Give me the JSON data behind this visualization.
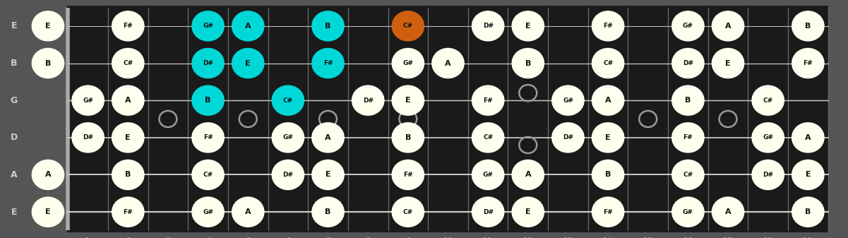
{
  "bg_color": "#555555",
  "board_color": "#1a1a1a",
  "strings": [
    "E",
    "B",
    "G",
    "D",
    "A",
    "E"
  ],
  "num_frets": 19,
  "fret_markers_single": [
    3,
    5,
    7,
    9,
    15,
    17
  ],
  "fret_markers_double": [
    12
  ],
  "note_color_default": "#fffff0",
  "note_color_cyan": "#00d8d8",
  "note_color_orange": "#d06010",
  "note_text_color": "#111111",
  "marker_color": "#999999",
  "string_label_color": "#cccccc",
  "fret_label_color": "#aaaaaa",
  "fret_line_color": "#666666",
  "string_line_color": "#cccccc",
  "nut_color": "#aaaaaa",
  "notes": [
    {
      "string": 0,
      "fret": 0,
      "note": "E",
      "color": "default"
    },
    {
      "string": 0,
      "fret": 2,
      "note": "F#",
      "color": "default"
    },
    {
      "string": 0,
      "fret": 4,
      "note": "G#",
      "color": "cyan"
    },
    {
      "string": 0,
      "fret": 5,
      "note": "A",
      "color": "cyan"
    },
    {
      "string": 0,
      "fret": 7,
      "note": "B",
      "color": "cyan"
    },
    {
      "string": 0,
      "fret": 9,
      "note": "C#",
      "color": "orange"
    },
    {
      "string": 0,
      "fret": 11,
      "note": "D#",
      "color": "default"
    },
    {
      "string": 0,
      "fret": 12,
      "note": "E",
      "color": "default"
    },
    {
      "string": 0,
      "fret": 14,
      "note": "F#",
      "color": "default"
    },
    {
      "string": 0,
      "fret": 16,
      "note": "G#",
      "color": "default"
    },
    {
      "string": 0,
      "fret": 17,
      "note": "A",
      "color": "default"
    },
    {
      "string": 0,
      "fret": 19,
      "note": "B",
      "color": "default"
    },
    {
      "string": 1,
      "fret": 0,
      "note": "B",
      "color": "default"
    },
    {
      "string": 1,
      "fret": 2,
      "note": "C#",
      "color": "default"
    },
    {
      "string": 1,
      "fret": 4,
      "note": "D#",
      "color": "cyan"
    },
    {
      "string": 1,
      "fret": 5,
      "note": "E",
      "color": "cyan"
    },
    {
      "string": 1,
      "fret": 7,
      "note": "F#",
      "color": "cyan"
    },
    {
      "string": 1,
      "fret": 9,
      "note": "G#",
      "color": "default"
    },
    {
      "string": 1,
      "fret": 10,
      "note": "A",
      "color": "default"
    },
    {
      "string": 1,
      "fret": 12,
      "note": "B",
      "color": "default"
    },
    {
      "string": 1,
      "fret": 14,
      "note": "C#",
      "color": "default"
    },
    {
      "string": 1,
      "fret": 16,
      "note": "D#",
      "color": "default"
    },
    {
      "string": 1,
      "fret": 17,
      "note": "E",
      "color": "default"
    },
    {
      "string": 1,
      "fret": 19,
      "note": "F#",
      "color": "default"
    },
    {
      "string": 2,
      "fret": 1,
      "note": "G#",
      "color": "default"
    },
    {
      "string": 2,
      "fret": 2,
      "note": "A",
      "color": "default"
    },
    {
      "string": 2,
      "fret": 4,
      "note": "B",
      "color": "cyan"
    },
    {
      "string": 2,
      "fret": 6,
      "note": "C#",
      "color": "cyan"
    },
    {
      "string": 2,
      "fret": 8,
      "note": "D#",
      "color": "default"
    },
    {
      "string": 2,
      "fret": 9,
      "note": "E",
      "color": "default"
    },
    {
      "string": 2,
      "fret": 11,
      "note": "F#",
      "color": "default"
    },
    {
      "string": 2,
      "fret": 13,
      "note": "G#",
      "color": "default"
    },
    {
      "string": 2,
      "fret": 14,
      "note": "A",
      "color": "default"
    },
    {
      "string": 2,
      "fret": 16,
      "note": "B",
      "color": "default"
    },
    {
      "string": 2,
      "fret": 18,
      "note": "C#",
      "color": "default"
    },
    {
      "string": 3,
      "fret": 1,
      "note": "D#",
      "color": "default"
    },
    {
      "string": 3,
      "fret": 2,
      "note": "E",
      "color": "default"
    },
    {
      "string": 3,
      "fret": 4,
      "note": "F#",
      "color": "default"
    },
    {
      "string": 3,
      "fret": 6,
      "note": "G#",
      "color": "default"
    },
    {
      "string": 3,
      "fret": 7,
      "note": "A",
      "color": "default"
    },
    {
      "string": 3,
      "fret": 9,
      "note": "B",
      "color": "default"
    },
    {
      "string": 3,
      "fret": 11,
      "note": "C#",
      "color": "default"
    },
    {
      "string": 3,
      "fret": 13,
      "note": "D#",
      "color": "default"
    },
    {
      "string": 3,
      "fret": 14,
      "note": "E",
      "color": "default"
    },
    {
      "string": 3,
      "fret": 16,
      "note": "F#",
      "color": "default"
    },
    {
      "string": 3,
      "fret": 18,
      "note": "G#",
      "color": "default"
    },
    {
      "string": 3,
      "fret": 19,
      "note": "A",
      "color": "default"
    },
    {
      "string": 4,
      "fret": 0,
      "note": "A",
      "color": "default"
    },
    {
      "string": 4,
      "fret": 2,
      "note": "B",
      "color": "default"
    },
    {
      "string": 4,
      "fret": 4,
      "note": "C#",
      "color": "default"
    },
    {
      "string": 4,
      "fret": 6,
      "note": "D#",
      "color": "default"
    },
    {
      "string": 4,
      "fret": 7,
      "note": "E",
      "color": "default"
    },
    {
      "string": 4,
      "fret": 9,
      "note": "F#",
      "color": "default"
    },
    {
      "string": 4,
      "fret": 11,
      "note": "G#",
      "color": "default"
    },
    {
      "string": 4,
      "fret": 12,
      "note": "A",
      "color": "default"
    },
    {
      "string": 4,
      "fret": 14,
      "note": "B",
      "color": "default"
    },
    {
      "string": 4,
      "fret": 16,
      "note": "C#",
      "color": "default"
    },
    {
      "string": 4,
      "fret": 18,
      "note": "D#",
      "color": "default"
    },
    {
      "string": 4,
      "fret": 19,
      "note": "E",
      "color": "default"
    },
    {
      "string": 5,
      "fret": 0,
      "note": "E",
      "color": "default"
    },
    {
      "string": 5,
      "fret": 2,
      "note": "F#",
      "color": "default"
    },
    {
      "string": 5,
      "fret": 4,
      "note": "G#",
      "color": "default"
    },
    {
      "string": 5,
      "fret": 5,
      "note": "A",
      "color": "default"
    },
    {
      "string": 5,
      "fret": 7,
      "note": "B",
      "color": "default"
    },
    {
      "string": 5,
      "fret": 9,
      "note": "C#",
      "color": "default"
    },
    {
      "string": 5,
      "fret": 11,
      "note": "D#",
      "color": "default"
    },
    {
      "string": 5,
      "fret": 12,
      "note": "E",
      "color": "default"
    },
    {
      "string": 5,
      "fret": 14,
      "note": "F#",
      "color": "default"
    },
    {
      "string": 5,
      "fret": 16,
      "note": "G#",
      "color": "default"
    },
    {
      "string": 5,
      "fret": 17,
      "note": "A",
      "color": "default"
    },
    {
      "string": 5,
      "fret": 19,
      "note": "B",
      "color": "default"
    }
  ]
}
